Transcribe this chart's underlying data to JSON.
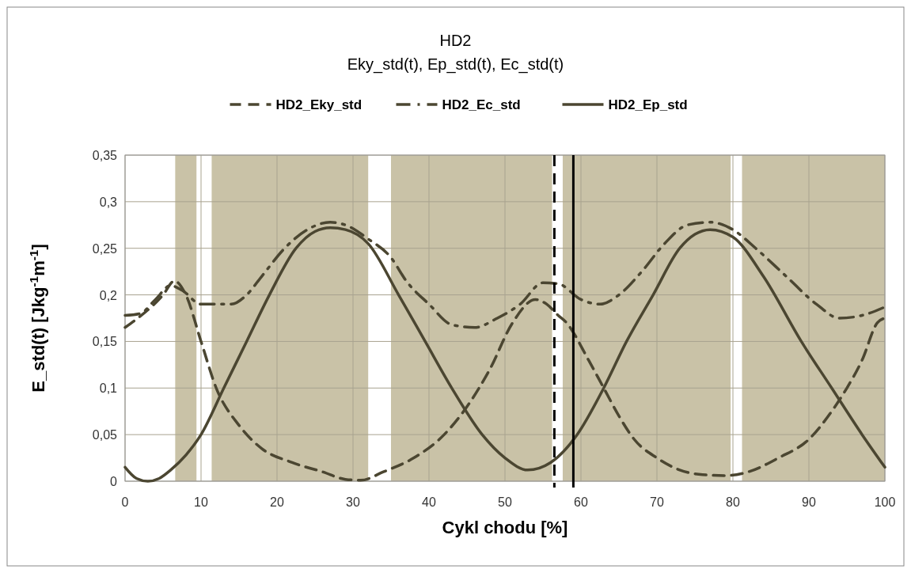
{
  "chart_data": {
    "type": "line",
    "title": "HD2",
    "subtitle": "Eky_std(t), Ep_std(t), Ec_std(t)",
    "xlabel": "Cykl chodu [%]",
    "ylabel": "E_std(t)   [Jkg$^{-1}$m$^{-1}$]",
    "xlim": [
      0,
      100
    ],
    "xticks": [
      0,
      10,
      20,
      30,
      40,
      50,
      60,
      70,
      80,
      90,
      100
    ],
    "ylim": [
      0,
      0.35
    ],
    "yticks": [
      0,
      {
        "value": 0.05,
        "label": "0,05"
      },
      {
        "value": 0.1,
        "label": "0,1"
      },
      {
        "value": 0.15,
        "label": "0,15"
      },
      {
        "value": 0.2,
        "label": "0,2"
      },
      {
        "value": 0.25,
        "label": "0,25"
      },
      {
        "value": 0.3,
        "label": "0,3"
      },
      {
        "value": 0.35,
        "label": "0,35"
      }
    ],
    "grid": true,
    "legend": "top",
    "series": [
      {
        "name": "HD2_Eky_std",
        "color": "#4b4631",
        "line_style": "dashed",
        "x": [
          0,
          5,
          6.5,
          8,
          10,
          12,
          15,
          18,
          22,
          26,
          29,
          31,
          34,
          38,
          42,
          45,
          48,
          51,
          54,
          55.5,
          57,
          58,
          61,
          63,
          65,
          67,
          70,
          73,
          76,
          79,
          82,
          86,
          90,
          93,
          95,
          97,
          99,
          100
        ],
        "values": [
          0.165,
          0.2,
          0.215,
          0.2,
          0.15,
          0.1,
          0.06,
          0.035,
          0.02,
          0.01,
          0.002,
          0.001,
          0.01,
          0.025,
          0.05,
          0.08,
          0.12,
          0.17,
          0.195,
          0.19,
          0.178,
          0.171,
          0.13,
          0.1,
          0.07,
          0.045,
          0.025,
          0.012,
          0.007,
          0.006,
          0.01,
          0.025,
          0.045,
          0.075,
          0.1,
          0.13,
          0.17,
          0.175
        ]
      },
      {
        "name": "HD2_Ec_std",
        "color": "#4b4631",
        "line_style": "dashdot",
        "x": [
          0,
          2,
          4,
          6,
          7.5,
          10,
          12,
          14,
          16,
          18,
          21,
          24,
          27,
          29,
          32,
          35,
          37,
          40,
          43,
          46,
          49,
          52,
          55,
          57,
          60,
          62.5,
          65,
          68,
          71,
          74,
          77,
          80,
          83,
          87,
          91,
          94,
          97,
          100
        ],
        "values": [
          0.178,
          0.18,
          0.195,
          0.21,
          0.205,
          0.19,
          0.19,
          0.19,
          0.2,
          0.22,
          0.25,
          0.27,
          0.278,
          0.275,
          0.26,
          0.24,
          0.215,
          0.19,
          0.168,
          0.165,
          0.175,
          0.19,
          0.213,
          0.212,
          0.195,
          0.19,
          0.2,
          0.225,
          0.255,
          0.275,
          0.278,
          0.27,
          0.25,
          0.22,
          0.19,
          0.175,
          0.178,
          0.187
        ]
      },
      {
        "name": "HD2_Ep_std",
        "color": "#4b4631",
        "line_style": "solid",
        "x": [
          0,
          1.5,
          3,
          4.5,
          6,
          8,
          10,
          13,
          16,
          19,
          22.5,
          25,
          27,
          29,
          32,
          36,
          39.5,
          43,
          47,
          50,
          53,
          56,
          59.5,
          63,
          66,
          69.5,
          73,
          75,
          77,
          80,
          84,
          89,
          93,
          97,
          100
        ],
        "values": [
          0.015,
          0.003,
          0,
          0.003,
          0.012,
          0.028,
          0.05,
          0.1,
          0.15,
          0.2,
          0.25,
          0.268,
          0.272,
          0.27,
          0.255,
          0.2,
          0.15,
          0.1,
          0.05,
          0.025,
          0.012,
          0.02,
          0.05,
          0.1,
          0.15,
          0.2,
          0.25,
          0.265,
          0.27,
          0.262,
          0.22,
          0.15,
          0.1,
          0.05,
          0.015
        ]
      }
    ],
    "bands": [
      {
        "axis": "x",
        "from": 6.6,
        "to": 9.4,
        "color": "#c9c2a7"
      },
      {
        "axis": "x",
        "from": 11.4,
        "to": 32,
        "color": "#c9c2a7"
      },
      {
        "axis": "x",
        "from": 35,
        "to": 56.2,
        "color": "#c9c2a7"
      },
      {
        "axis": "x",
        "from": 57.6,
        "to": 79.7,
        "color": "#c9c2a7"
      },
      {
        "axis": "x",
        "from": 81.2,
        "to": 100,
        "color": "#c9c2a7"
      }
    ],
    "ref_lines": [
      {
        "axis": "x",
        "value": 56.5,
        "color": "#000000",
        "line_style": "dashed"
      },
      {
        "axis": "x",
        "value": 59,
        "color": "#000000",
        "line_style": "solid"
      }
    ]
  }
}
